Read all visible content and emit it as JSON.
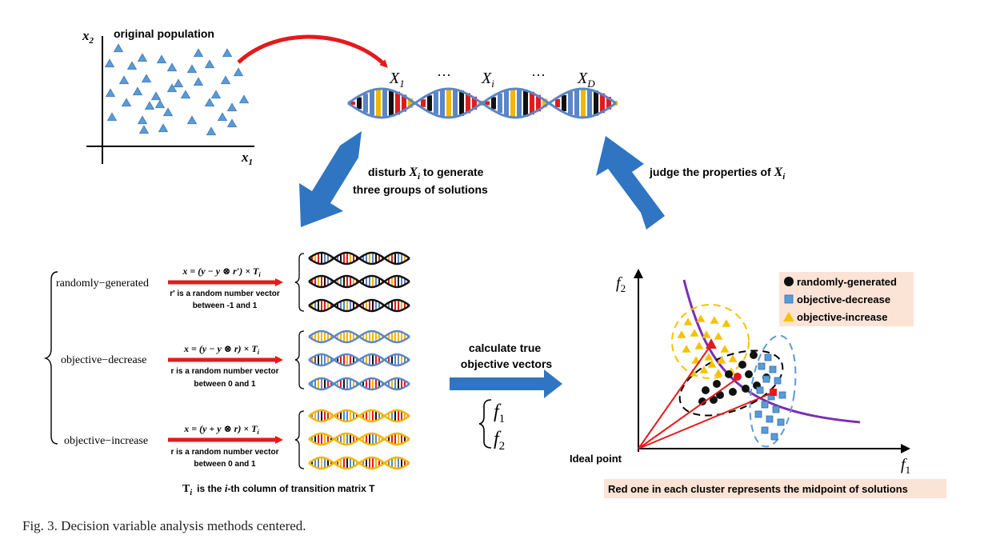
{
  "colors": {
    "blue": "#2f75c2",
    "red": "#e31a1c",
    "black": "#111111",
    "yellow": "#f6c200",
    "purple": "#7b2fb0",
    "dna_blue": "#5b86c5",
    "dna_yellow": "#f2b600",
    "label_bg": "#fbe3d6"
  },
  "population_plot": {
    "title": "original population",
    "x_axis": "x",
    "x_sub": "1",
    "y_axis": "x",
    "y_sub": "2"
  },
  "variables": {
    "x1": "X",
    "x1_sub": "1",
    "dots1": "···",
    "xi": "X",
    "xi_sub": "i",
    "dots2": "···",
    "xd": "X",
    "xd_sub": "D"
  },
  "arrows": {
    "disturb_line1_pre": "disturb ",
    "disturb_var": "X",
    "disturb_sub": "i",
    "disturb_line1_post": " to generate",
    "disturb_line2": "three groups of solutions",
    "judge_pre": "judge the properties of ",
    "judge_var": "X",
    "judge_sub": "i",
    "calc_line1": "calculate true",
    "calc_line2": "objective vectors",
    "f1": "f",
    "f1_sub": "1",
    "f2": "f",
    "f2_sub": "2"
  },
  "groups": [
    {
      "name": "randomly−generated",
      "formula": "x = (y − y ⊗ r′) × T",
      "formula_sub": "i",
      "note1": "r′ is a random number vector",
      "note2": "between -1 and 1"
    },
    {
      "name": "objective−decrease",
      "formula": "x = (y − y ⊗ r) × T",
      "formula_sub": "i",
      "note1": "r is a random number vector",
      "note2": "between 0 and 1"
    },
    {
      "name": "objective−increase",
      "formula": "x = (y + y ⊗ r) × T",
      "formula_sub": "i",
      "note1": "r is a random number vector",
      "note2": "between 0 and 1"
    }
  ],
  "transition_note": {
    "t": "T",
    "t_sub": "i",
    "pre": "is the ",
    "i": "i",
    "post": "-th column of transition matrix T"
  },
  "objective_plot": {
    "y_axis": "f",
    "y_sub": "2",
    "x_axis": "f",
    "x_sub": "1",
    "ideal_point": "Ideal point",
    "legend": [
      {
        "label": "randomly-generated",
        "marker": "black-circle"
      },
      {
        "label": "objective-decrease",
        "marker": "blue-square"
      },
      {
        "label": "objective-increase",
        "marker": "yellow-triangle"
      }
    ],
    "footnote": "Red one in each cluster represents the midpoint of solutions"
  },
  "caption": "Fig. 3.   Decision variable analysis methods centered."
}
